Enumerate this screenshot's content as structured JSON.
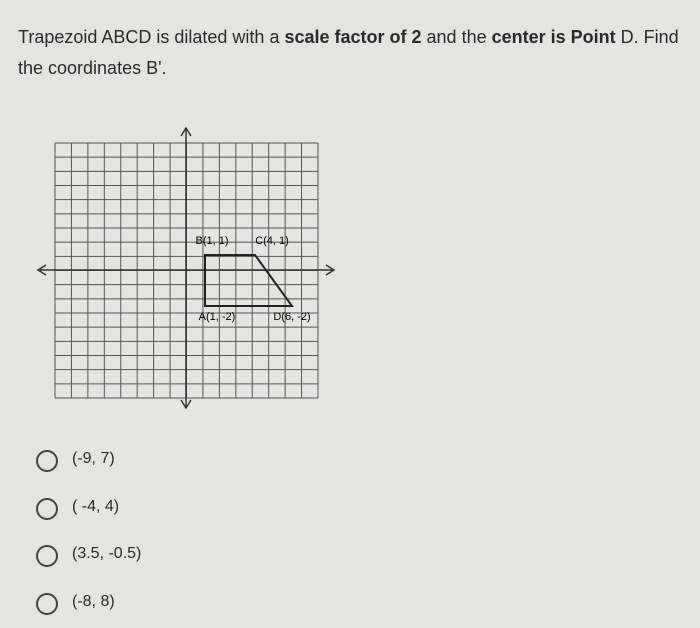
{
  "question": {
    "segments": [
      "Trapezoid ABCD is dilated with a ",
      "scale factor of 2",
      " and the ",
      "center is Point",
      " D. Find the coordinates B'."
    ]
  },
  "graph": {
    "labels": [
      "B(1, 1)",
      "C(4, 1)",
      "A(1, -2)",
      "D(6, -2)"
    ]
  },
  "options": [
    "(-9, 7)",
    "( -4, 4)",
    "(3.5, -0.5)",
    "(-8, 8)"
  ]
}
